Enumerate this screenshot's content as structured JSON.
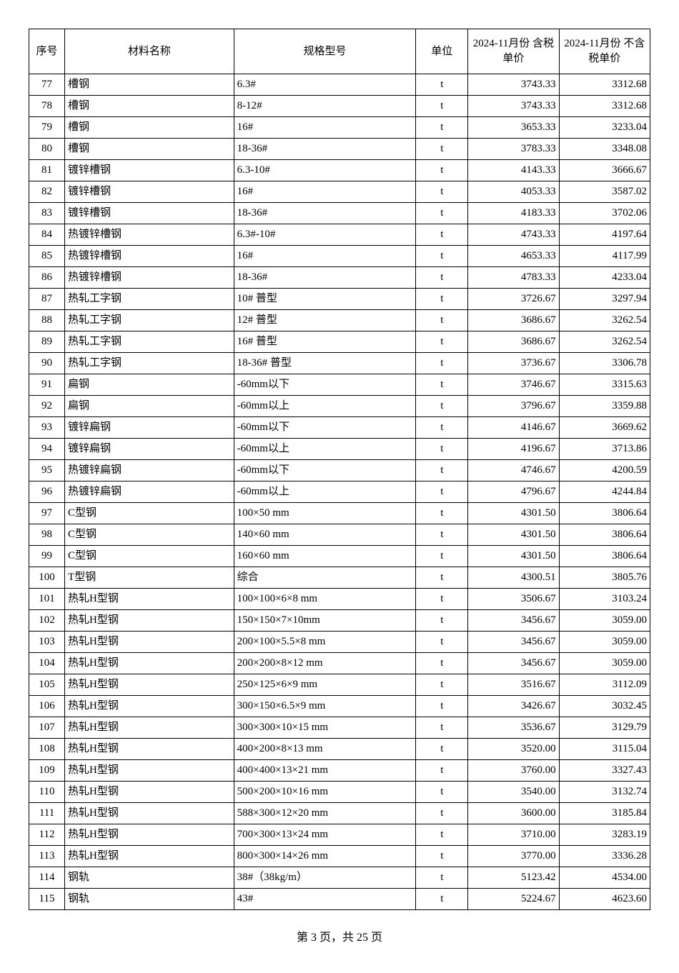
{
  "columns": {
    "seq": "序号",
    "name": "材料名称",
    "spec": "规格型号",
    "unit": "单位",
    "price_tax": "2024-11月份\n含税单价",
    "price_notax": "2024-11月份\n不含税单价"
  },
  "rows": [
    {
      "seq": 77,
      "name": "槽钢",
      "spec": "6.3#",
      "unit": "t",
      "p1": "3743.33",
      "p2": "3312.68"
    },
    {
      "seq": 78,
      "name": "槽钢",
      "spec": "8-12#",
      "unit": "t",
      "p1": "3743.33",
      "p2": "3312.68"
    },
    {
      "seq": 79,
      "name": "槽钢",
      "spec": "16#",
      "unit": "t",
      "p1": "3653.33",
      "p2": "3233.04"
    },
    {
      "seq": 80,
      "name": "槽钢",
      "spec": "18-36#",
      "unit": "t",
      "p1": "3783.33",
      "p2": "3348.08"
    },
    {
      "seq": 81,
      "name": "镀锌槽钢",
      "spec": "6.3-10#",
      "unit": "t",
      "p1": "4143.33",
      "p2": "3666.67"
    },
    {
      "seq": 82,
      "name": "镀锌槽钢",
      "spec": "16#",
      "unit": "t",
      "p1": "4053.33",
      "p2": "3587.02"
    },
    {
      "seq": 83,
      "name": "镀锌槽钢",
      "spec": "18-36#",
      "unit": "t",
      "p1": "4183.33",
      "p2": "3702.06"
    },
    {
      "seq": 84,
      "name": "热镀锌槽钢",
      "spec": "6.3#-10#",
      "unit": "t",
      "p1": "4743.33",
      "p2": "4197.64"
    },
    {
      "seq": 85,
      "name": "热镀锌槽钢",
      "spec": "16#",
      "unit": "t",
      "p1": "4653.33",
      "p2": "4117.99"
    },
    {
      "seq": 86,
      "name": "热镀锌槽钢",
      "spec": "18-36#",
      "unit": "t",
      "p1": "4783.33",
      "p2": "4233.04"
    },
    {
      "seq": 87,
      "name": "热轧工字钢",
      "spec": "10# 普型",
      "unit": "t",
      "p1": "3726.67",
      "p2": "3297.94"
    },
    {
      "seq": 88,
      "name": "热轧工字钢",
      "spec": "12# 普型",
      "unit": "t",
      "p1": "3686.67",
      "p2": "3262.54"
    },
    {
      "seq": 89,
      "name": "热轧工字钢",
      "spec": "16# 普型",
      "unit": "t",
      "p1": "3686.67",
      "p2": "3262.54"
    },
    {
      "seq": 90,
      "name": "热轧工字钢",
      "spec": "18-36# 普型",
      "unit": "t",
      "p1": "3736.67",
      "p2": "3306.78"
    },
    {
      "seq": 91,
      "name": "扁钢",
      "spec": "-60mm以下",
      "unit": "t",
      "p1": "3746.67",
      "p2": "3315.63"
    },
    {
      "seq": 92,
      "name": "扁钢",
      "spec": "-60mm以上",
      "unit": "t",
      "p1": "3796.67",
      "p2": "3359.88"
    },
    {
      "seq": 93,
      "name": "镀锌扁钢",
      "spec": "-60mm以下",
      "unit": "t",
      "p1": "4146.67",
      "p2": "3669.62"
    },
    {
      "seq": 94,
      "name": "镀锌扁钢",
      "spec": "-60mm以上",
      "unit": "t",
      "p1": "4196.67",
      "p2": "3713.86"
    },
    {
      "seq": 95,
      "name": "热镀锌扁钢",
      "spec": "-60mm以下",
      "unit": "t",
      "p1": "4746.67",
      "p2": "4200.59"
    },
    {
      "seq": 96,
      "name": "热镀锌扁钢",
      "spec": "-60mm以上",
      "unit": "t",
      "p1": "4796.67",
      "p2": "4244.84"
    },
    {
      "seq": 97,
      "name": "C型钢",
      "spec": "100×50 mm",
      "unit": "t",
      "p1": "4301.50",
      "p2": "3806.64"
    },
    {
      "seq": 98,
      "name": "C型钢",
      "spec": "140×60 mm",
      "unit": "t",
      "p1": "4301.50",
      "p2": "3806.64"
    },
    {
      "seq": 99,
      "name": "C型钢",
      "spec": "160×60 mm",
      "unit": "t",
      "p1": "4301.50",
      "p2": "3806.64"
    },
    {
      "seq": 100,
      "name": "T型钢",
      "spec": "综合",
      "unit": "t",
      "p1": "4300.51",
      "p2": "3805.76"
    },
    {
      "seq": 101,
      "name": "热轧H型钢",
      "spec": "100×100×6×8 mm",
      "unit": "t",
      "p1": "3506.67",
      "p2": "3103.24"
    },
    {
      "seq": 102,
      "name": "热轧H型钢",
      "spec": "150×150×7×10mm",
      "unit": "t",
      "p1": "3456.67",
      "p2": "3059.00"
    },
    {
      "seq": 103,
      "name": "热轧H型钢",
      "spec": "200×100×5.5×8 mm",
      "unit": "t",
      "p1": "3456.67",
      "p2": "3059.00"
    },
    {
      "seq": 104,
      "name": "热轧H型钢",
      "spec": "200×200×8×12 mm",
      "unit": "t",
      "p1": "3456.67",
      "p2": "3059.00"
    },
    {
      "seq": 105,
      "name": "热轧H型钢",
      "spec": "250×125×6×9 mm",
      "unit": "t",
      "p1": "3516.67",
      "p2": "3112.09"
    },
    {
      "seq": 106,
      "name": "热轧H型钢",
      "spec": "300×150×6.5×9 mm",
      "unit": "t",
      "p1": "3426.67",
      "p2": "3032.45"
    },
    {
      "seq": 107,
      "name": "热轧H型钢",
      "spec": "300×300×10×15 mm",
      "unit": "t",
      "p1": "3536.67",
      "p2": "3129.79"
    },
    {
      "seq": 108,
      "name": "热轧H型钢",
      "spec": "400×200×8×13 mm",
      "unit": "t",
      "p1": "3520.00",
      "p2": "3115.04"
    },
    {
      "seq": 109,
      "name": "热轧H型钢",
      "spec": "400×400×13×21 mm",
      "unit": "t",
      "p1": "3760.00",
      "p2": "3327.43"
    },
    {
      "seq": 110,
      "name": "热轧H型钢",
      "spec": "500×200×10×16 mm",
      "unit": "t",
      "p1": "3540.00",
      "p2": "3132.74"
    },
    {
      "seq": 111,
      "name": "热轧H型钢",
      "spec": "588×300×12×20 mm",
      "unit": "t",
      "p1": "3600.00",
      "p2": "3185.84"
    },
    {
      "seq": 112,
      "name": "热轧H型钢",
      "spec": "700×300×13×24 mm",
      "unit": "t",
      "p1": "3710.00",
      "p2": "3283.19"
    },
    {
      "seq": 113,
      "name": "热轧H型钢",
      "spec": "800×300×14×26 mm",
      "unit": "t",
      "p1": "3770.00",
      "p2": "3336.28"
    },
    {
      "seq": 114,
      "name": "钢轨",
      "spec": "38#（38kg/m）",
      "unit": "t",
      "p1": "5123.42",
      "p2": "4534.00"
    },
    {
      "seq": 115,
      "name": "钢轨",
      "spec": "43#",
      "unit": "t",
      "p1": "5224.67",
      "p2": "4623.60"
    }
  ],
  "pager": "第 3 页，共 25 页"
}
